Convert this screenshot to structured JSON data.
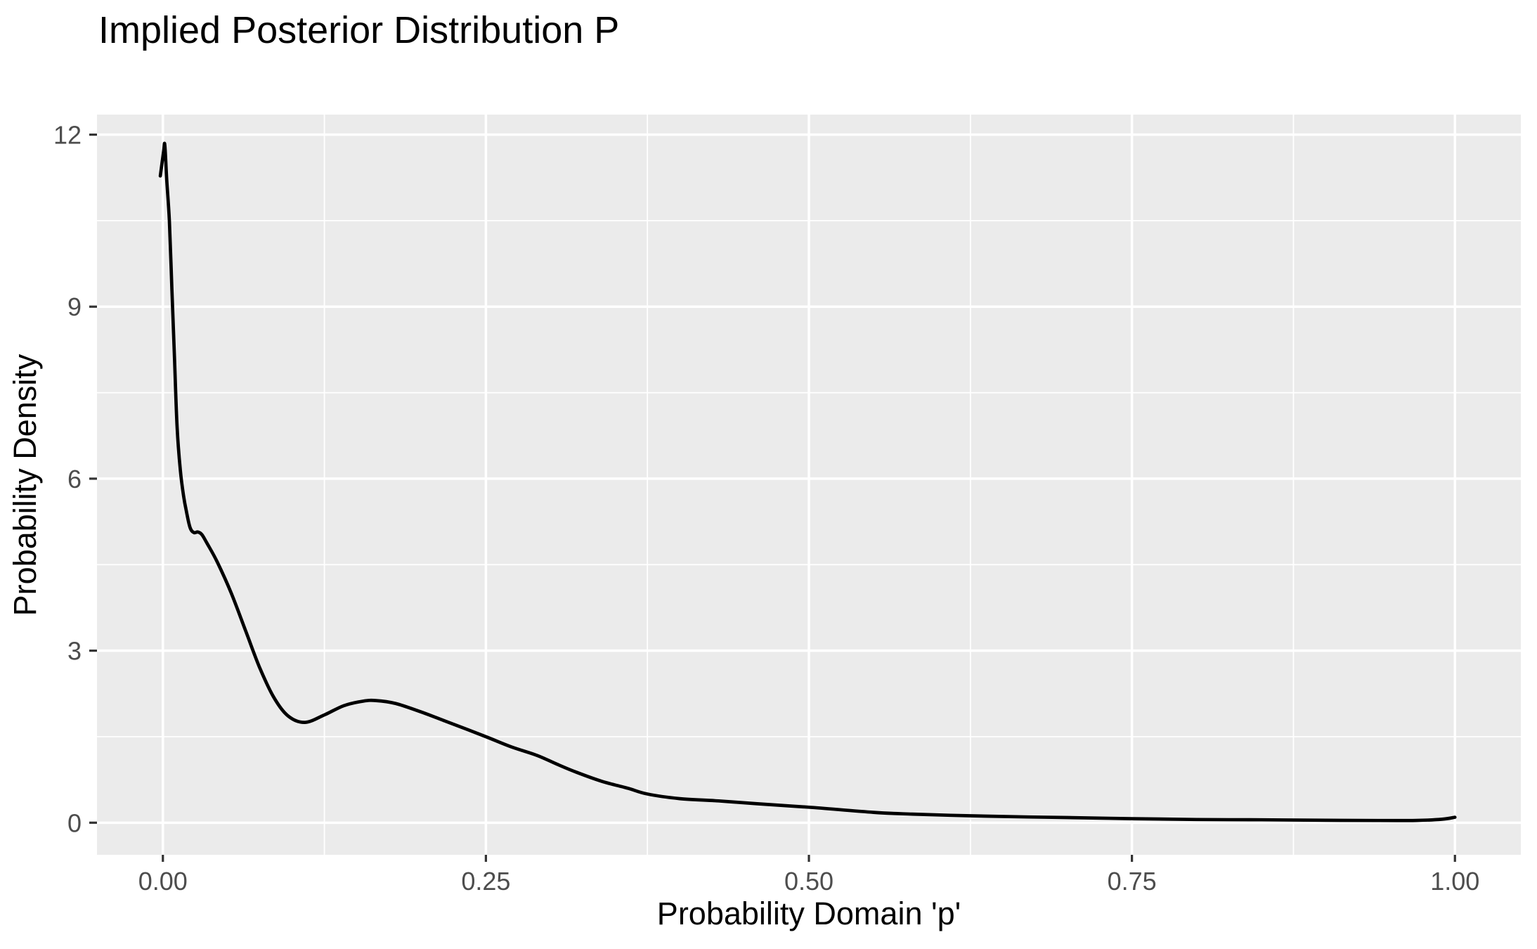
{
  "chart_data": {
    "type": "line",
    "subtype": "density-curve",
    "title": "Implied Posterior Distribution P",
    "xlabel": "Probability Domain 'p'",
    "ylabel": "Probability Density",
    "xlim": [
      -0.051,
      1.051
    ],
    "ylim": [
      -0.56,
      12.35
    ],
    "x_ticks": {
      "values": [
        0,
        0.25,
        0.5,
        0.75,
        1.0
      ],
      "labels": [
        "0.00",
        "0.25",
        "0.50",
        "0.75",
        "1.00"
      ]
    },
    "y_ticks": {
      "values": [
        0,
        3,
        6,
        9,
        12
      ],
      "labels": [
        "0",
        "3",
        "6",
        "9",
        "12"
      ]
    },
    "x_minor": [
      0.125,
      0.375,
      0.625,
      0.875
    ],
    "y_minor": [
      1.5,
      4.5,
      7.5,
      10.5
    ],
    "grid": true,
    "legend": false,
    "colors": {
      "panel_bg": "#EBEBEB",
      "grid": "#FFFFFF",
      "line": "#000000",
      "tick_mark": "#333333",
      "tick_label": "#4D4D4D",
      "axis_title": "#000000",
      "title": "#000000",
      "outer_bg": "#FFFFFF"
    },
    "series": [
      {
        "name": "posterior density",
        "x": [
          -0.002,
          0.0005,
          0.0015,
          0.003,
          0.005,
          0.007,
          0.009,
          0.011,
          0.0135,
          0.016,
          0.018,
          0.021,
          0.024,
          0.027,
          0.03,
          0.034,
          0.042,
          0.053,
          0.064,
          0.075,
          0.086,
          0.097,
          0.11,
          0.125,
          0.14,
          0.155,
          0.165,
          0.18,
          0.2,
          0.22,
          0.25,
          0.27,
          0.29,
          0.305,
          0.32,
          0.34,
          0.36,
          0.375,
          0.4,
          0.43,
          0.46,
          0.5,
          0.55,
          0.58,
          0.625,
          0.67,
          0.7,
          0.75,
          0.8,
          0.85,
          0.9,
          0.94,
          0.97,
          0.99,
          1.0
        ],
        "y": [
          11.28,
          11.7,
          11.82,
          11.2,
          10.5,
          9.3,
          8.1,
          6.9,
          6.15,
          5.7,
          5.45,
          5.15,
          5.06,
          5.07,
          5.03,
          4.88,
          4.55,
          4.0,
          3.35,
          2.7,
          2.18,
          1.86,
          1.75,
          1.88,
          2.04,
          2.12,
          2.13,
          2.08,
          1.93,
          1.76,
          1.5,
          1.32,
          1.17,
          1.02,
          0.88,
          0.72,
          0.6,
          0.5,
          0.42,
          0.38,
          0.33,
          0.27,
          0.18,
          0.15,
          0.12,
          0.1,
          0.09,
          0.07,
          0.055,
          0.05,
          0.042,
          0.038,
          0.04,
          0.06,
          0.095
        ]
      }
    ]
  }
}
